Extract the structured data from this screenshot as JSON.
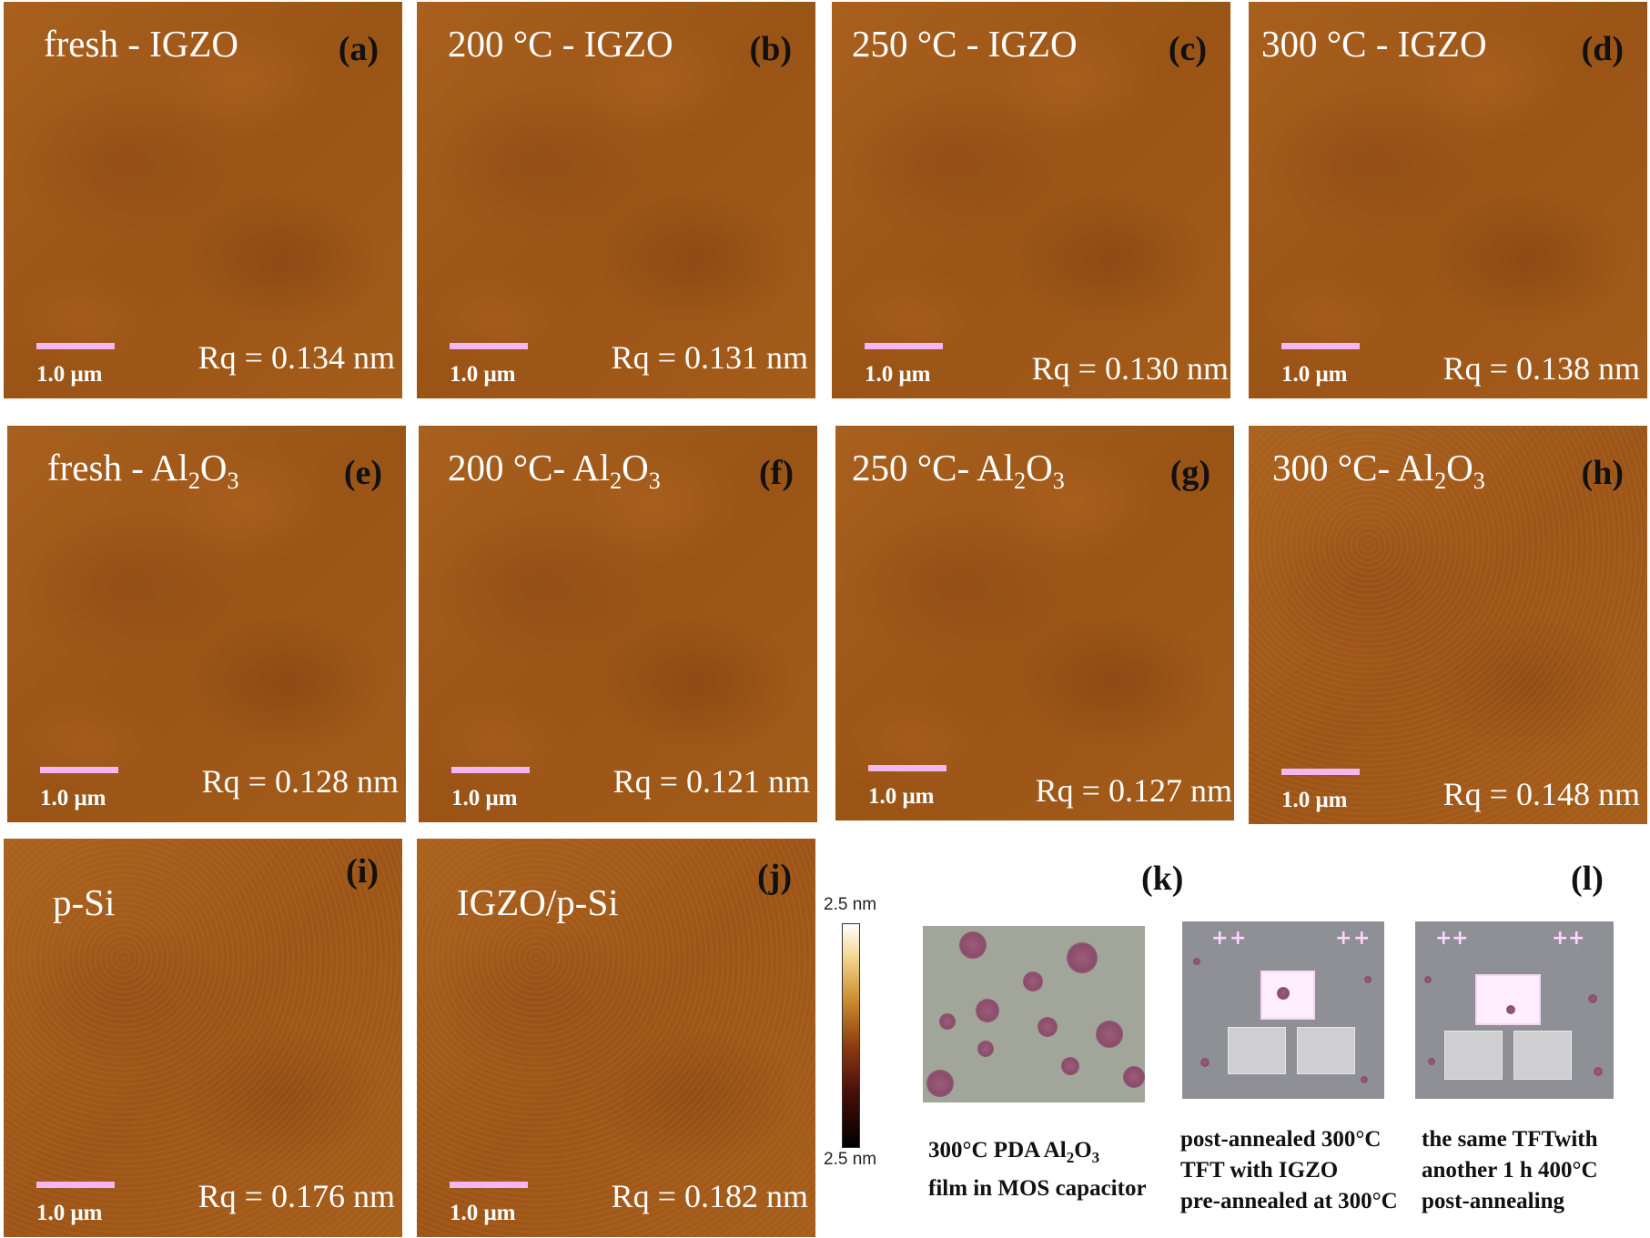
{
  "panels": [
    {
      "title": "fresh - IGZO",
      "letter": "(a)",
      "scale": "1.0 μm",
      "rq": "Rq = 0.134 nm"
    },
    {
      "title": "200 °C - IGZO",
      "letter": "(b)",
      "scale": "1.0 μm",
      "rq": "Rq = 0.131 nm"
    },
    {
      "title": "250 °C - IGZO",
      "letter": "(c)",
      "scale": "1.0 μm",
      "rq": "Rq = 0.130 nm"
    },
    {
      "title": "300 °C - IGZO",
      "letter": "(d)",
      "scale": "1.0 μm",
      "rq": "Rq = 0.138 nm"
    },
    {
      "title_main": "fresh - Al",
      "sub1": "2",
      "title_mid": "O",
      "sub2": "3",
      "letter": "(e)",
      "scale": "1.0 μm",
      "rq": "Rq = 0.128 nm"
    },
    {
      "title_main": "200 °C- Al",
      "sub1": "2",
      "title_mid": "O",
      "sub2": "3",
      "letter": "(f)",
      "scale": "1.0 μm",
      "rq": "Rq = 0.121 nm"
    },
    {
      "title_main": "250 °C- Al",
      "sub1": "2",
      "title_mid": "O",
      "sub2": "3",
      "letter": "(g)",
      "scale": "1.0 μm",
      "rq": "Rq = 0.127 nm"
    },
    {
      "title_main": "300 °C- Al",
      "sub1": "2",
      "title_mid": "O",
      "sub2": "3",
      "letter": "(h)",
      "scale": "1.0 μm",
      "rq": "Rq = 0.148 nm"
    },
    {
      "title": "p-Si",
      "letter": "(i)",
      "scale": "1.0 μm",
      "rq": "Rq = 0.176  nm"
    },
    {
      "title": "IGZO/p-Si",
      "letter": "(j)",
      "scale": "1.0 μm",
      "rq": "Rq = 0.182 nm"
    }
  ],
  "colorbar": {
    "top": "2.5 nm",
    "bottom": "2.5 nm"
  },
  "photos": {
    "k_label": "(k)",
    "l_label": "(l)",
    "caption1_line1": "300°C PDA Al",
    "caption1_sub": "2",
    "caption1_mid": "O",
    "caption1_sub2": "3",
    "caption1_line2": "film in MOS capacitor",
    "caption2": "post-annealed 300°C\nTFT with IGZO\npre-annealed at 300°C",
    "caption3": "the same TFTwith\nanother 1 h 400°C\npost-annealing",
    "mark": "+"
  }
}
